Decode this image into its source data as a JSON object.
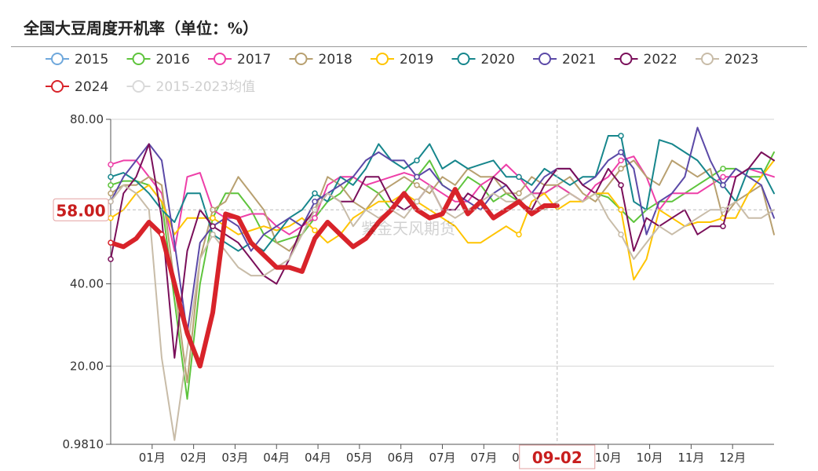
{
  "title": "全国大豆周度开机率（单位：%）",
  "watermark": "紫金天风期货",
  "chart_data": {
    "type": "line",
    "title": "全国大豆周度开机率（单位：%）",
    "xlabel": "",
    "ylabel": "",
    "ylim": [
      0.981,
      80
    ],
    "yticks": [
      "80.00",
      "40.00",
      "20.00",
      "0.9810"
    ],
    "ytick_values": [
      80,
      40,
      20,
      0.981
    ],
    "xticks": [
      "01月",
      "02月",
      "03月",
      "04月",
      "04月",
      "05月",
      "06月",
      "07月",
      "07月",
      "08月",
      "09月",
      "10月",
      "10月",
      "11月",
      "12月"
    ],
    "x_range": [
      1,
      53
    ],
    "crosshair": {
      "x_label": "09-02",
      "y_label": "58.00",
      "x": 36,
      "y": 58
    },
    "grid": true,
    "legend_position": "top",
    "series": [
      {
        "name": "2015",
        "color": "#6fa8dc",
        "dashed": false,
        "visible": true,
        "values": []
      },
      {
        "name": "2016",
        "color": "#5ec43c",
        "values": [
          64,
          65,
          65,
          64,
          60,
          36,
          12,
          40,
          56,
          62,
          62,
          58,
          52,
          50,
          51,
          52,
          56,
          60,
          62,
          66,
          64,
          62,
          58,
          62,
          66,
          70,
          64,
          62,
          66,
          64,
          60,
          62,
          60,
          62,
          62,
          64,
          62,
          60,
          62,
          61,
          58,
          55,
          58,
          60,
          60,
          62,
          64,
          66,
          68,
          68,
          66,
          66,
          72
        ]
      },
      {
        "name": "2017",
        "color": "#ee3fa8",
        "values": [
          69,
          70,
          70,
          66,
          62,
          48,
          66,
          67,
          58,
          56,
          56,
          57,
          57,
          54,
          52,
          54,
          56,
          64,
          66,
          66,
          64,
          65,
          66,
          67,
          66,
          64,
          62,
          60,
          60,
          64,
          66,
          69,
          66,
          62,
          62,
          64,
          62,
          60,
          64,
          66,
          70,
          71,
          66,
          58,
          62,
          62,
          62,
          64,
          66,
          66,
          68,
          67,
          66
        ]
      },
      {
        "name": "2018",
        "color": "#b8a070",
        "values": [
          62,
          64,
          64,
          66,
          64,
          40,
          16,
          46,
          58,
          60,
          66,
          62,
          58,
          50,
          48,
          52,
          58,
          66,
          64,
          60,
          58,
          62,
          64,
          66,
          64,
          62,
          66,
          64,
          68,
          66,
          66,
          62,
          62,
          66,
          64,
          64,
          66,
          62,
          60,
          64,
          68,
          70,
          66,
          64,
          70,
          68,
          66,
          68,
          56,
          60,
          62,
          64,
          52
        ]
      },
      {
        "name": "2019",
        "color": "#ffc400",
        "values": [
          56,
          58,
          62,
          64,
          60,
          52,
          56,
          56,
          56,
          54,
          52,
          53,
          54,
          53,
          54,
          56,
          53,
          50,
          52,
          56,
          58,
          60,
          60,
          62,
          60,
          58,
          56,
          54,
          50,
          50,
          52,
          54,
          52,
          60,
          62,
          58,
          60,
          60,
          62,
          62,
          58,
          41,
          46,
          58,
          56,
          54,
          55,
          55,
          56,
          56,
          62,
          66,
          70
        ]
      },
      {
        "name": "2020",
        "color": "#16868c",
        "values": [
          66,
          67,
          65,
          62,
          58,
          55,
          62,
          62,
          52,
          50,
          48,
          50,
          48,
          52,
          56,
          58,
          62,
          60,
          66,
          64,
          68,
          74,
          70,
          68,
          70,
          74,
          68,
          70,
          68,
          69,
          70,
          66,
          66,
          64,
          68,
          66,
          64,
          66,
          66,
          76,
          76,
          60,
          58,
          75,
          74,
          72,
          70,
          66,
          64,
          60,
          68,
          68,
          62
        ]
      },
      {
        "name": "2021",
        "color": "#5b49a7",
        "values": [
          60,
          66,
          70,
          74,
          70,
          50,
          28,
          50,
          54,
          56,
          54,
          48,
          52,
          54,
          56,
          54,
          60,
          62,
          64,
          66,
          70,
          72,
          70,
          70,
          66,
          68,
          64,
          62,
          60,
          58,
          62,
          64,
          60,
          62,
          66,
          68,
          68,
          64,
          66,
          70,
          72,
          68,
          52,
          60,
          62,
          66,
          78,
          70,
          64,
          68,
          66,
          64,
          56
        ]
      },
      {
        "name": "2022",
        "color": "#7a0f5a",
        "values": [
          46,
          62,
          66,
          74,
          56,
          22,
          48,
          58,
          54,
          52,
          50,
          46,
          42,
          40,
          46,
          54,
          58,
          62,
          60,
          60,
          66,
          66,
          60,
          58,
          60,
          64,
          58,
          58,
          62,
          60,
          66,
          64,
          60,
          58,
          64,
          68,
          68,
          64,
          62,
          68,
          64,
          48,
          56,
          54,
          56,
          58,
          52,
          54,
          54,
          66,
          68,
          72,
          70
        ]
      },
      {
        "name": "2023",
        "color": "#c8bca8",
        "values": [
          60,
          64,
          62,
          58,
          22,
          2,
          24,
          46,
          52,
          48,
          44,
          42,
          42,
          44,
          46,
          52,
          58,
          62,
          60,
          54,
          58,
          56,
          58,
          56,
          60,
          64,
          58,
          56,
          58,
          60,
          62,
          60,
          60,
          62,
          58,
          60,
          62,
          60,
          62,
          56,
          52,
          46,
          50,
          54,
          52,
          54,
          56,
          58,
          58,
          60,
          56,
          56,
          58
        ]
      },
      {
        "name": "2024",
        "color": "#d8232a",
        "values": [
          50,
          49,
          51,
          55,
          52,
          40,
          28,
          20,
          33,
          57,
          56,
          50,
          47,
          44,
          44,
          43,
          51,
          55,
          52,
          49,
          51,
          55,
          58,
          62,
          58,
          56,
          57,
          63,
          57,
          60,
          56,
          58,
          60,
          57,
          59,
          59
        ]
      },
      {
        "name": "2015-2023均值",
        "color": "#d9d9d9",
        "visible": false,
        "values": []
      }
    ]
  }
}
